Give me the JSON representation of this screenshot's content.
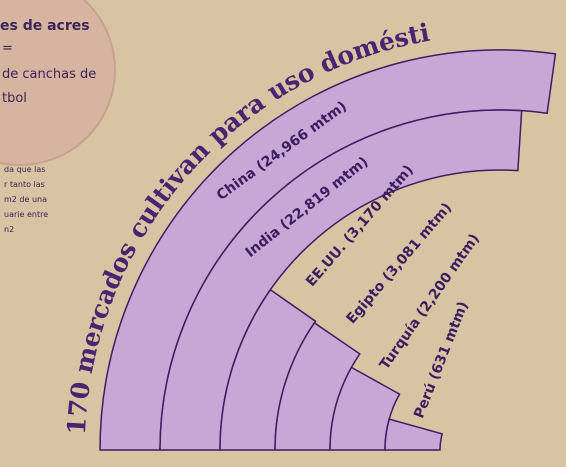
{
  "chart_data": {
    "type": "radial-bar",
    "title": "170 mercados cultivan para uso doméstico",
    "value_labels": [
      "China (24,966 mtm)",
      "India (22,819 mtm)",
      "EE.UU. (3,170 mtm)",
      "Egipto (3,081 mtm)",
      "Turquía (2,200 mtm)",
      "Perú (631 mtm)"
    ],
    "values": [
      24966,
      22819,
      3170,
      3081,
      2200,
      631
    ],
    "color": "#c8a6d6"
  },
  "notes": {
    "heading": "es de acres",
    "equals": "=",
    "lines": [
      "de canchas de",
      "tbol"
    ],
    "small": [
      "da que las",
      "r tanto las",
      "m2  de una",
      "uarie entre",
      "n2"
    ]
  }
}
